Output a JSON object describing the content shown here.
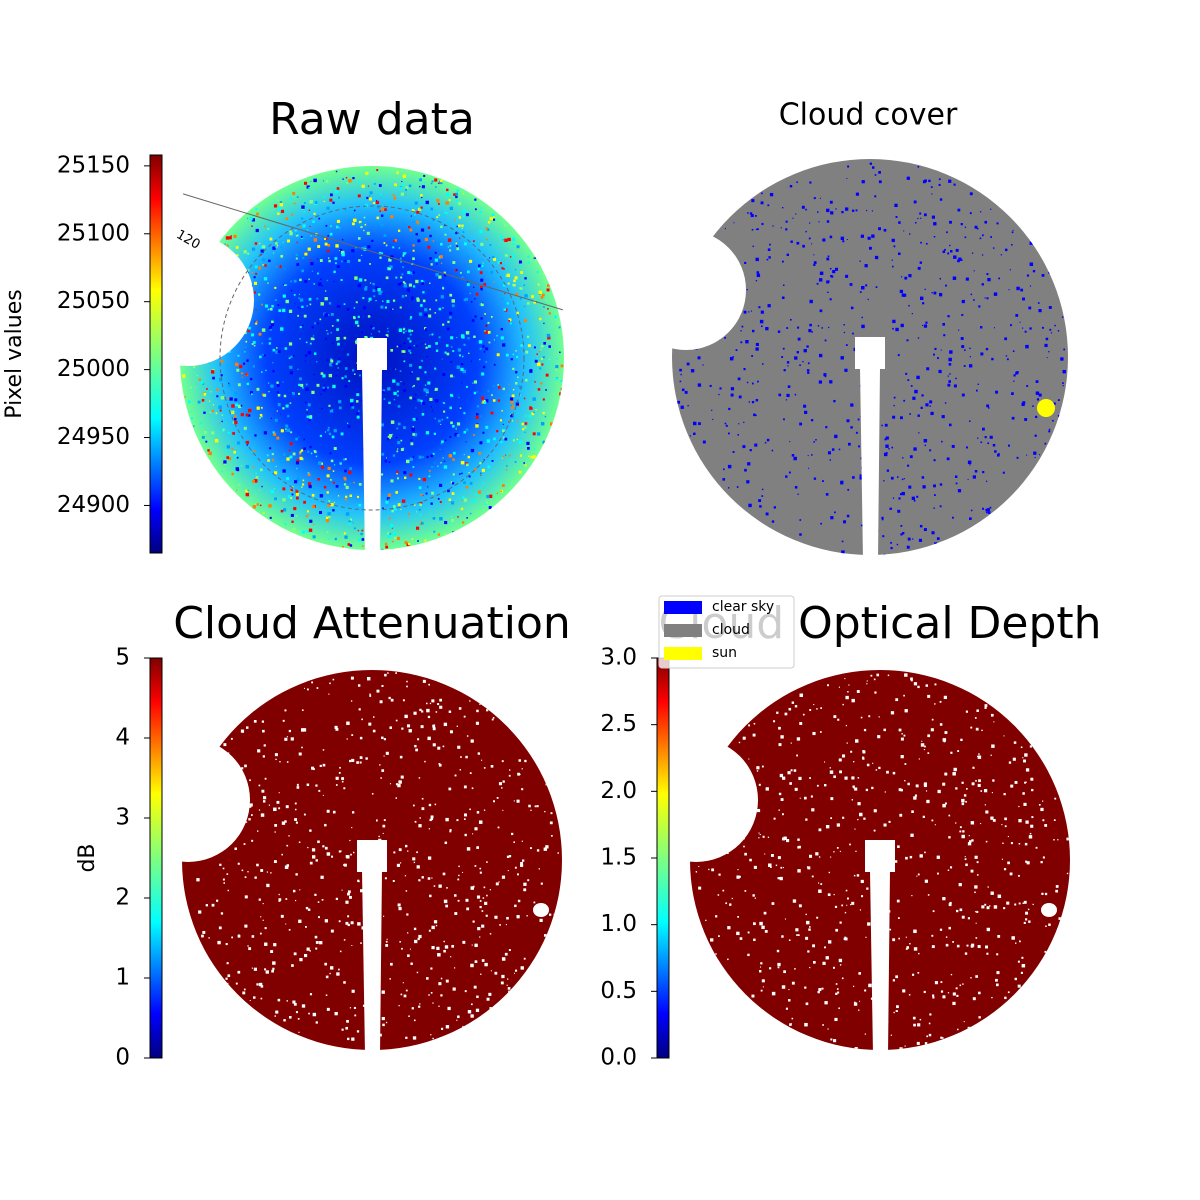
{
  "chart_data": [
    {
      "type": "image",
      "title": "Raw data",
      "colorbar": {
        "label": "Pixel values",
        "lim": [
          24865,
          25158
        ],
        "ticks": [
          24900,
          24950,
          25000,
          25050,
          25100,
          25150
        ]
      },
      "annotations": [
        "120"
      ]
    },
    {
      "type": "image",
      "title": "Cloud cover",
      "series": [
        {
          "name": "clear sky",
          "color": "#0000ff"
        },
        {
          "name": "cloud",
          "color": "#808080"
        },
        {
          "name": "sun",
          "color": "#ffff00"
        }
      ]
    },
    {
      "type": "image",
      "title": "Cloud Attenuation",
      "color": "#800000",
      "colorbar": {
        "label": "dB",
        "lim": [
          0,
          5
        ],
        "ticks": [
          0,
          1,
          2,
          3,
          4,
          5
        ]
      }
    },
    {
      "type": "image",
      "title": "Cloud Optical Depth",
      "color": "#800000",
      "colorbar": {
        "lim": [
          0,
          3
        ],
        "ticks": [
          {
            "value": 0,
            "label": "0.0"
          },
          {
            "value": 0.5,
            "label": "0.5"
          },
          {
            "value": 1,
            "label": "1.0"
          },
          {
            "value": 1.5,
            "label": "1.5"
          },
          {
            "value": 2,
            "label": "2.0"
          },
          {
            "value": 2.5,
            "label": "2.5"
          },
          {
            "value": 3,
            "label": "3.0"
          }
        ]
      }
    }
  ]
}
